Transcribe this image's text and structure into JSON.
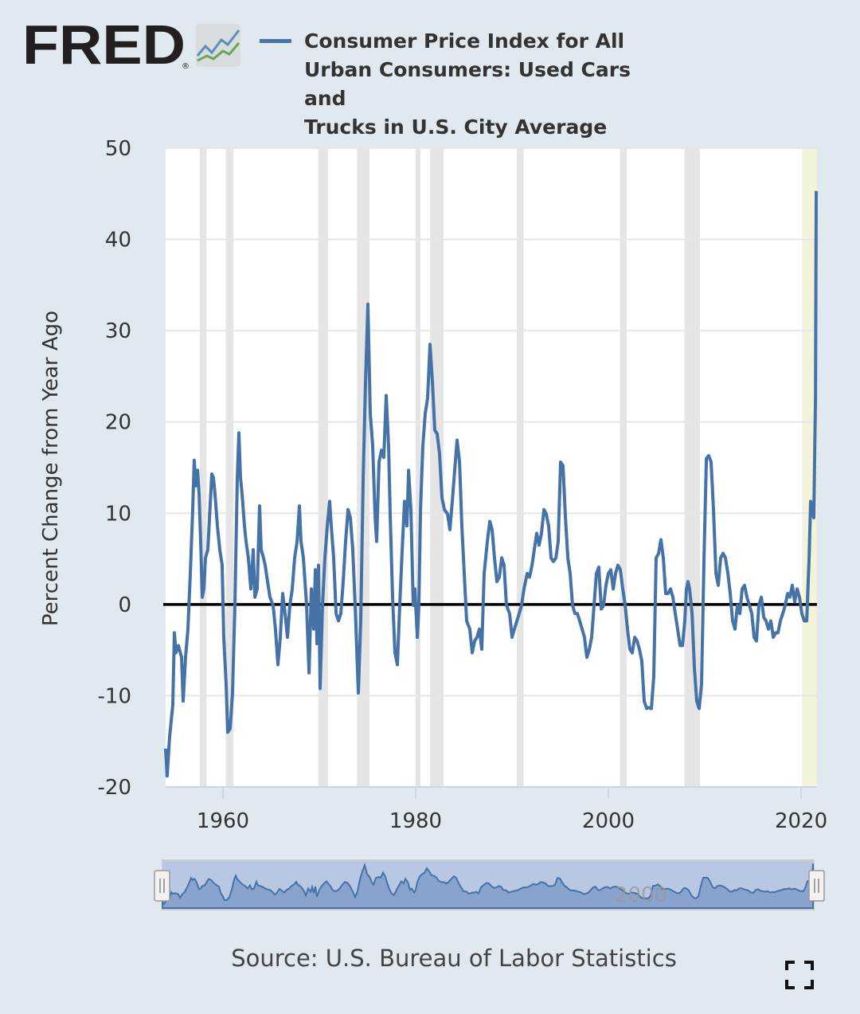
{
  "logo": {
    "text": "FRED",
    "registered": "®"
  },
  "legend": {
    "series_name": "Consumer Price Index for All Urban Consumers: Used Cars and Trucks in U.S. City Average",
    "lines": [
      "Consumer Price Index for All",
      "Urban Consumers: Used Cars and",
      "Trucks in U.S. City Average"
    ]
  },
  "source": "Source: U.S. Bureau of Labor Statistics",
  "fullscreen_icon": "fullscreen-icon",
  "colors": {
    "series": "#4572a7",
    "background": "#e1e9f0",
    "recession": "#e5e5e5",
    "recession_current": "#f3f3dc",
    "navigator_fill": "#b8c8e2",
    "zero_line": "#000000"
  },
  "chart_data": {
    "type": "line",
    "title": "",
    "xlabel": "",
    "ylabel": "Percent Change from Year Ago",
    "xlim": [
      1954.05,
      2021.65
    ],
    "ylim": [
      -20,
      50
    ],
    "yticks": [
      -20,
      -10,
      0,
      10,
      20,
      30,
      40,
      50
    ],
    "xticks": [
      1960,
      1980,
      2000,
      2020
    ],
    "grid": "horizontal",
    "zero_line": true,
    "legend_position": "top",
    "recessions": [
      [
        1957.6,
        1958.3
      ],
      [
        1960.3,
        1961.1
      ],
      [
        1969.9,
        1970.9
      ],
      [
        1973.9,
        1975.2
      ],
      [
        1980.0,
        1980.5
      ],
      [
        1981.5,
        1982.9
      ],
      [
        1990.5,
        1991.2
      ],
      [
        2001.2,
        2001.9
      ],
      [
        2007.9,
        2009.5
      ]
    ],
    "current_period_highlight": [
      2020.1,
      2021.65
    ],
    "navigator": {
      "label": "2000",
      "range": [
        1954.05,
        2021.65
      ]
    },
    "series": [
      {
        "name": "Consumer Price Index for All Urban Consumers: Used Cars and Trucks in U.S. City Average",
        "points": [
          [
            1954.05,
            -15.8
          ],
          [
            1954.21,
            -18.8
          ],
          [
            1954.46,
            -14.5
          ],
          [
            1954.79,
            -11.0
          ],
          [
            1954.96,
            -3.1
          ],
          [
            1955.12,
            -5.3
          ],
          [
            1955.37,
            -4.5
          ],
          [
            1955.7,
            -5.8
          ],
          [
            1955.87,
            -10.6
          ],
          [
            1956.12,
            -5.8
          ],
          [
            1956.36,
            -2.7
          ],
          [
            1956.61,
            3.4
          ],
          [
            1956.86,
            10.4
          ],
          [
            1957.02,
            15.8
          ],
          [
            1957.19,
            13.0
          ],
          [
            1957.36,
            14.7
          ],
          [
            1957.52,
            12.1
          ],
          [
            1957.69,
            6.9
          ],
          [
            1957.85,
            0.8
          ],
          [
            1958.02,
            1.7
          ],
          [
            1958.18,
            5.1
          ],
          [
            1958.43,
            6.0
          ],
          [
            1958.6,
            9.5
          ],
          [
            1958.84,
            14.3
          ],
          [
            1959.01,
            13.9
          ],
          [
            1959.17,
            12.1
          ],
          [
            1959.42,
            8.6
          ],
          [
            1959.67,
            6.0
          ],
          [
            1959.92,
            4.3
          ],
          [
            1960.08,
            -3.6
          ],
          [
            1960.33,
            -8.8
          ],
          [
            1960.5,
            -14.0
          ],
          [
            1960.74,
            -13.6
          ],
          [
            1960.99,
            -9.7
          ],
          [
            1961.24,
            -0.1
          ],
          [
            1961.49,
            13.9
          ],
          [
            1961.65,
            18.8
          ],
          [
            1961.82,
            13.9
          ],
          [
            1961.98,
            12.1
          ],
          [
            1962.23,
            8.6
          ],
          [
            1962.4,
            6.9
          ],
          [
            1962.64,
            5.1
          ],
          [
            1962.89,
            1.7
          ],
          [
            1963.14,
            6.0
          ],
          [
            1963.31,
            0.8
          ],
          [
            1963.55,
            1.7
          ],
          [
            1963.8,
            10.8
          ],
          [
            1963.97,
            6.0
          ],
          [
            1964.21,
            5.1
          ],
          [
            1964.38,
            4.3
          ],
          [
            1964.63,
            2.5
          ],
          [
            1964.88,
            0.8
          ],
          [
            1965.21,
            -0.1
          ],
          [
            1965.45,
            -2.7
          ],
          [
            1965.7,
            -6.6
          ],
          [
            1965.95,
            -3.6
          ],
          [
            1966.2,
            1.2
          ],
          [
            1966.45,
            -1.0
          ],
          [
            1966.69,
            -3.6
          ],
          [
            1966.94,
            -0.1
          ],
          [
            1967.19,
            1.7
          ],
          [
            1967.44,
            5.1
          ],
          [
            1967.69,
            6.9
          ],
          [
            1967.93,
            10.8
          ],
          [
            1968.1,
            6.9
          ],
          [
            1968.35,
            5.1
          ],
          [
            1968.68,
            -0.1
          ],
          [
            1968.93,
            -7.5
          ],
          [
            1969.17,
            1.7
          ],
          [
            1969.42,
            -2.7
          ],
          [
            1969.59,
            3.8
          ],
          [
            1969.75,
            -4.3
          ],
          [
            1969.92,
            4.3
          ],
          [
            1970.08,
            -9.2
          ],
          [
            1970.33,
            -0.1
          ],
          [
            1970.58,
            5.1
          ],
          [
            1970.83,
            8.6
          ],
          [
            1971.07,
            11.3
          ],
          [
            1971.24,
            8.6
          ],
          [
            1971.49,
            5.1
          ],
          [
            1971.74,
            -1.0
          ],
          [
            1971.98,
            -1.8
          ],
          [
            1972.23,
            -1.0
          ],
          [
            1972.48,
            2.5
          ],
          [
            1972.73,
            6.9
          ],
          [
            1972.98,
            10.4
          ],
          [
            1973.22,
            9.5
          ],
          [
            1973.47,
            6.0
          ],
          [
            1973.72,
            -0.1
          ],
          [
            1974.05,
            -9.7
          ],
          [
            1974.3,
            -1.8
          ],
          [
            1974.55,
            13.9
          ],
          [
            1974.79,
            24.3
          ],
          [
            1975.04,
            32.9
          ],
          [
            1975.29,
            20.9
          ],
          [
            1975.54,
            17.4
          ],
          [
            1975.79,
            9.5
          ],
          [
            1975.95,
            6.9
          ],
          [
            1976.2,
            15.6
          ],
          [
            1976.45,
            16.9
          ],
          [
            1976.69,
            16.1
          ],
          [
            1976.94,
            22.9
          ],
          [
            1977.19,
            17.4
          ],
          [
            1977.36,
            9.5
          ],
          [
            1977.6,
            0.8
          ],
          [
            1977.85,
            -5.3
          ],
          [
            1978.1,
            -6.6
          ],
          [
            1978.35,
            -0.1
          ],
          [
            1978.6,
            6.0
          ],
          [
            1978.84,
            11.3
          ],
          [
            1979.09,
            8.6
          ],
          [
            1979.26,
            14.7
          ],
          [
            1979.5,
            10.4
          ],
          [
            1979.75,
            -0.1
          ],
          [
            1979.92,
            1.7
          ],
          [
            1980.17,
            -3.6
          ],
          [
            1980.33,
            -0.1
          ],
          [
            1980.5,
            10.4
          ],
          [
            1980.74,
            17.4
          ],
          [
            1980.99,
            20.9
          ],
          [
            1981.24,
            22.6
          ],
          [
            1981.49,
            28.5
          ],
          [
            1981.74,
            24.3
          ],
          [
            1981.98,
            19.1
          ],
          [
            1982.23,
            18.7
          ],
          [
            1982.48,
            16.5
          ],
          [
            1982.73,
            11.7
          ],
          [
            1982.98,
            10.4
          ],
          [
            1983.31,
            9.9
          ],
          [
            1983.55,
            8.2
          ],
          [
            1983.8,
            11.3
          ],
          [
            1984.05,
            14.7
          ],
          [
            1984.3,
            18.0
          ],
          [
            1984.55,
            15.6
          ],
          [
            1984.79,
            8.6
          ],
          [
            1985.04,
            3.4
          ],
          [
            1985.29,
            -1.8
          ],
          [
            1985.62,
            -2.7
          ],
          [
            1985.87,
            -5.3
          ],
          [
            1986.12,
            -4.0
          ],
          [
            1986.36,
            -3.6
          ],
          [
            1986.61,
            -2.7
          ],
          [
            1986.86,
            -4.9
          ],
          [
            1987.11,
            3.4
          ],
          [
            1987.44,
            6.9
          ],
          [
            1987.69,
            9.1
          ],
          [
            1987.93,
            8.2
          ],
          [
            1988.18,
            5.1
          ],
          [
            1988.43,
            2.5
          ],
          [
            1988.68,
            3.0
          ],
          [
            1988.93,
            5.1
          ],
          [
            1989.17,
            4.3
          ],
          [
            1989.42,
            -0.1
          ],
          [
            1989.75,
            -1.0
          ],
          [
            1990.0,
            -3.6
          ],
          [
            1990.25,
            -2.7
          ],
          [
            1990.5,
            -1.8
          ],
          [
            1990.74,
            -1.0
          ],
          [
            1990.99,
            -0.1
          ],
          [
            1991.24,
            1.7
          ],
          [
            1991.57,
            3.4
          ],
          [
            1991.82,
            3.0
          ],
          [
            1992.07,
            4.3
          ],
          [
            1992.31,
            6.0
          ],
          [
            1992.56,
            7.8
          ],
          [
            1992.81,
            6.5
          ],
          [
            1993.06,
            7.8
          ],
          [
            1993.31,
            10.4
          ],
          [
            1993.55,
            9.9
          ],
          [
            1993.8,
            8.6
          ],
          [
            1994.05,
            5.1
          ],
          [
            1994.3,
            4.7
          ],
          [
            1994.55,
            5.1
          ],
          [
            1994.79,
            6.9
          ],
          [
            1995.04,
            15.6
          ],
          [
            1995.29,
            15.2
          ],
          [
            1995.54,
            9.5
          ],
          [
            1995.79,
            5.1
          ],
          [
            1996.03,
            3.4
          ],
          [
            1996.28,
            -0.1
          ],
          [
            1996.53,
            -1.0
          ],
          [
            1996.78,
            -1.0
          ],
          [
            1997.02,
            -1.8
          ],
          [
            1997.27,
            -2.7
          ],
          [
            1997.52,
            -3.6
          ],
          [
            1997.77,
            -5.8
          ],
          [
            1998.02,
            -4.9
          ],
          [
            1998.26,
            -3.6
          ],
          [
            1998.51,
            -0.1
          ],
          [
            1998.76,
            3.4
          ],
          [
            1999.01,
            4.1
          ],
          [
            1999.26,
            -0.5
          ],
          [
            1999.5,
            -0.1
          ],
          [
            1999.75,
            2.1
          ],
          [
            2000.0,
            3.4
          ],
          [
            2000.25,
            3.8
          ],
          [
            2000.5,
            1.7
          ],
          [
            2000.74,
            3.4
          ],
          [
            2000.99,
            4.3
          ],
          [
            2001.24,
            3.8
          ],
          [
            2001.49,
            1.7
          ],
          [
            2001.74,
            -0.1
          ],
          [
            2001.98,
            -2.7
          ],
          [
            2002.23,
            -4.9
          ],
          [
            2002.48,
            -5.3
          ],
          [
            2002.73,
            -3.6
          ],
          [
            2002.98,
            -4.0
          ],
          [
            2003.22,
            -4.9
          ],
          [
            2003.47,
            -6.2
          ],
          [
            2003.72,
            -10.6
          ],
          [
            2003.97,
            -11.4
          ],
          [
            2004.21,
            -11.3
          ],
          [
            2004.46,
            -11.4
          ],
          [
            2004.71,
            -7.9
          ],
          [
            2004.96,
            5.1
          ],
          [
            2005.21,
            5.6
          ],
          [
            2005.45,
            7.1
          ],
          [
            2005.7,
            5.1
          ],
          [
            2005.95,
            1.2
          ],
          [
            2006.2,
            1.2
          ],
          [
            2006.45,
            1.7
          ],
          [
            2006.69,
            0.8
          ],
          [
            2006.94,
            -1.0
          ],
          [
            2007.19,
            -2.7
          ],
          [
            2007.44,
            -4.5
          ],
          [
            2007.69,
            -4.5
          ],
          [
            2007.93,
            -1.8
          ],
          [
            2008.1,
            1.7
          ],
          [
            2008.26,
            2.5
          ],
          [
            2008.43,
            1.7
          ],
          [
            2008.68,
            -1.0
          ],
          [
            2008.93,
            -7.1
          ],
          [
            2009.17,
            -10.6
          ],
          [
            2009.42,
            -11.4
          ],
          [
            2009.67,
            -8.8
          ],
          [
            2009.92,
            5.1
          ],
          [
            2010.17,
            16.0
          ],
          [
            2010.41,
            16.3
          ],
          [
            2010.66,
            15.6
          ],
          [
            2010.91,
            10.4
          ],
          [
            2011.16,
            3.4
          ],
          [
            2011.4,
            2.1
          ],
          [
            2011.65,
            5.1
          ],
          [
            2011.9,
            5.6
          ],
          [
            2012.15,
            5.1
          ],
          [
            2012.4,
            3.4
          ],
          [
            2012.64,
            1.2
          ],
          [
            2012.89,
            -1.8
          ],
          [
            2013.14,
            -2.7
          ],
          [
            2013.39,
            -0.1
          ],
          [
            2013.64,
            -1.0
          ],
          [
            2013.88,
            1.7
          ],
          [
            2014.13,
            2.1
          ],
          [
            2014.38,
            0.8
          ],
          [
            2014.63,
            -0.1
          ],
          [
            2014.88,
            -1.0
          ],
          [
            2015.12,
            -3.6
          ],
          [
            2015.37,
            -4.0
          ],
          [
            2015.62,
            -0.1
          ],
          [
            2015.87,
            0.8
          ],
          [
            2016.12,
            -1.4
          ],
          [
            2016.36,
            -1.8
          ],
          [
            2016.61,
            -2.7
          ],
          [
            2016.86,
            -1.8
          ],
          [
            2017.11,
            -3.6
          ],
          [
            2017.36,
            -3.1
          ],
          [
            2017.6,
            -3.1
          ],
          [
            2017.85,
            -1.8
          ],
          [
            2018.1,
            -1.0
          ],
          [
            2018.35,
            -0.1
          ],
          [
            2018.6,
            1.2
          ],
          [
            2018.84,
            0.8
          ],
          [
            2019.09,
            2.1
          ],
          [
            2019.34,
            0.3
          ],
          [
            2019.59,
            1.7
          ],
          [
            2019.83,
            0.8
          ],
          [
            2020.08,
            -1.0
          ],
          [
            2020.33,
            -1.8
          ],
          [
            2020.58,
            -1.8
          ],
          [
            2020.83,
            5.1
          ],
          [
            2020.99,
            11.3
          ],
          [
            2021.16,
            10.4
          ],
          [
            2021.32,
            9.5
          ],
          [
            2021.49,
            22.6
          ],
          [
            2021.57,
            45.3
          ]
        ]
      }
    ]
  }
}
